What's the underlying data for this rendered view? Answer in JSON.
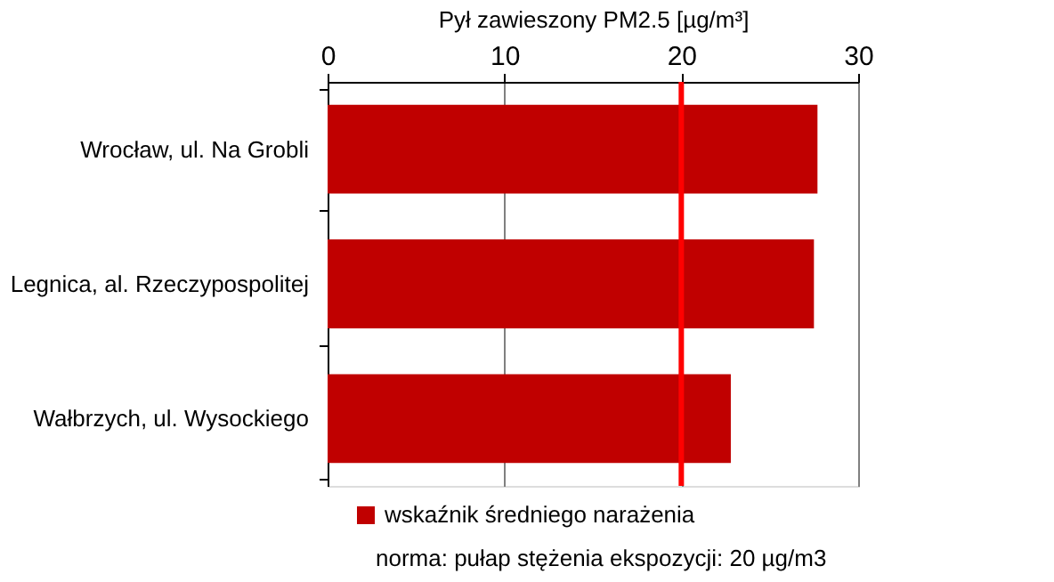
{
  "chart_data": {
    "type": "bar",
    "orientation": "horizontal",
    "xlabel": "Pył zawieszony PM2.5 [µg/m³]",
    "categories": [
      "Wrocław, ul. Na Grobli",
      "Legnica, al. Rzeczypospolitej",
      "Wałbrzych, ul. Wysockiego"
    ],
    "series": [
      {
        "name": "wskaźnik średniego narażenia",
        "color": "#c00000",
        "values": [
          27.7,
          27.5,
          22.8
        ]
      }
    ],
    "xlim": [
      0,
      30
    ],
    "xticks": [
      0,
      10,
      20,
      30
    ],
    "grid": "x",
    "legend": "bottom",
    "ref_lines": [
      {
        "axis": "x",
        "value": 20,
        "color": "#ff0000"
      }
    ],
    "annotations": [
      "norma: pułap stężenia ekspozycji: 20 µg/m3"
    ]
  }
}
